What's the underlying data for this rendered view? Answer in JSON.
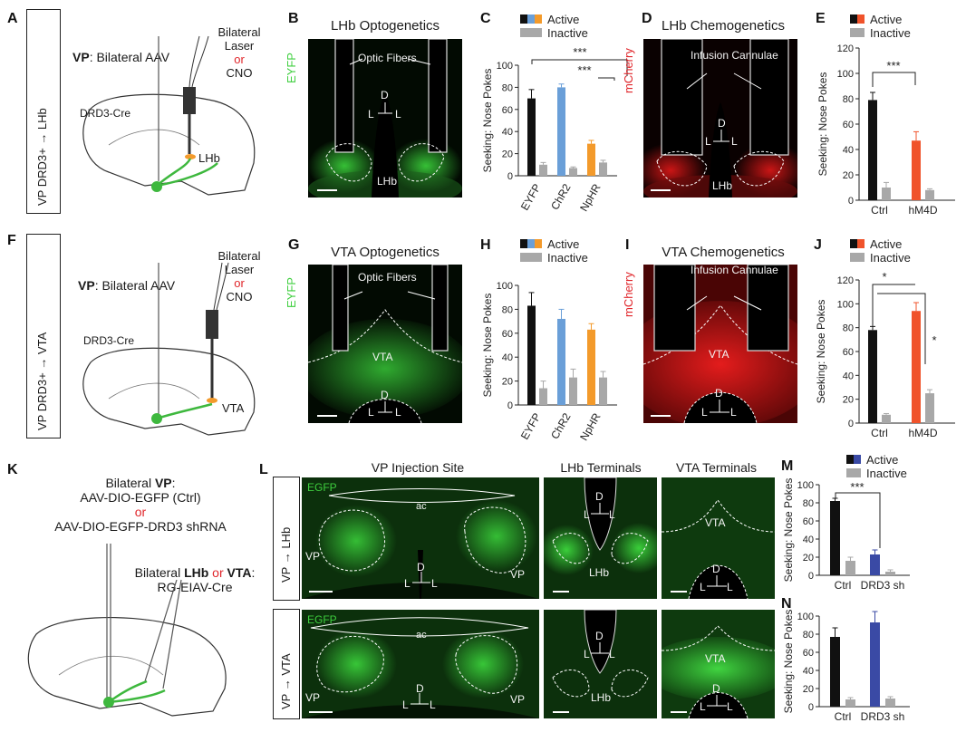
{
  "panels": {
    "A": {
      "label": "A",
      "bilateral": "Bilateral",
      "laser": "Laser",
      "or": "or",
      "cno": "CNO",
      "vp_bold": "VP",
      "vp_rest": ": Bilateral AAV",
      "cre": "DRD3-Cre",
      "target": "LHb",
      "side": "VP DRD3+ → LHb"
    },
    "B": {
      "label": "B",
      "title": "LHb Optogenetics",
      "stain": "EYFP",
      "fibers": "Optic Fibers",
      "region": "LHb",
      "d": "D",
      "l": "L"
    },
    "C": {
      "label": "C",
      "legend_active": "Active",
      "legend_inactive": "Inactive",
      "sig1": "***",
      "sig2": "***"
    },
    "D": {
      "label": "D",
      "title": "LHb Chemogenetics",
      "stain": "mCherry",
      "cannulae": "Infusion Cannulae",
      "region": "LHb",
      "d": "D",
      "l": "L"
    },
    "E": {
      "label": "E",
      "legend_active": "Active",
      "legend_inactive": "Inactive",
      "sig1": "***"
    },
    "F": {
      "label": "F",
      "bilateral": "Bilateral",
      "laser": "Laser",
      "or": "or",
      "cno": "CNO",
      "vp_bold": "VP",
      "vp_rest": ": Bilateral AAV",
      "cre": "DRD3-Cre",
      "target": "VTA",
      "side": "VP DRD3+ → VTA"
    },
    "G": {
      "label": "G",
      "title": "VTA Optogenetics",
      "stain": "EYFP",
      "fibers": "Optic Fibers",
      "region": "VTA",
      "d": "D",
      "l": "L"
    },
    "H": {
      "label": "H",
      "legend_active": "Active",
      "legend_inactive": "Inactive"
    },
    "I": {
      "label": "I",
      "title": "VTA Chemogenetics",
      "stain": "mCherry",
      "cannulae": "Infusion Cannulae",
      "region": "VTA",
      "d": "D",
      "l": "L"
    },
    "J": {
      "label": "J",
      "legend_active": "Active",
      "legend_inactive": "Inactive",
      "sig1": "*",
      "sig2": "*"
    },
    "K": {
      "label": "K",
      "line1_pre": "Bilateral ",
      "line1_bold": "VP",
      "line1_post": ":",
      "line2": "AAV-DIO-EGFP (Ctrl)",
      "line3": "or",
      "line4": "AAV-DIO-EGFP-DRD3 shRNA",
      "line5_pre": "Bilateral ",
      "line5_b1": "LHb",
      "line5_or": " or ",
      "line5_b2": "VTA",
      "line5_post": ":",
      "line6": "RG-EIAV-Cre"
    },
    "L": {
      "label": "L",
      "col1": "VP Injection Site",
      "col2": "LHb Terminals",
      "col3": "VTA Terminals",
      "row1": "VP → LHb",
      "row2": "VP → VTA",
      "stain": "EGFP",
      "ac": "ac",
      "vp": "VP",
      "lhb": "LHb",
      "vta": "VTA",
      "d": "D",
      "l": "L"
    },
    "M": {
      "label": "M",
      "legend_active": "Active",
      "legend_inactive": "Inactive",
      "sig1": "***"
    },
    "N": {
      "label": "N"
    }
  },
  "colors": {
    "black": "#111111",
    "blue": "#6a9fd8",
    "orange": "#f39a2b",
    "red_orange": "#f0532b",
    "gray": "#a8a8a8",
    "navy": "#3a4aa5"
  },
  "chart_data": [
    {
      "id": "C",
      "type": "bar",
      "ylabel": "Seeking: Nose Pokes",
      "ylim": [
        0,
        100
      ],
      "yticks": [
        0,
        20,
        40,
        60,
        80,
        100
      ],
      "categories": [
        "EYFP",
        "ChR2",
        "NpHR"
      ],
      "series": [
        {
          "name": "Active",
          "values": [
            70,
            80,
            29
          ],
          "errors": [
            8,
            3,
            3
          ]
        },
        {
          "name": "Inactive",
          "values": [
            10,
            7,
            12
          ],
          "errors": [
            2,
            1,
            2
          ]
        }
      ]
    },
    {
      "id": "E",
      "type": "bar",
      "ylabel": "Seeking: Nose Pokes",
      "ylim": [
        0,
        120
      ],
      "yticks": [
        0,
        20,
        40,
        60,
        80,
        100,
        120
      ],
      "categories": [
        "Ctrl",
        "hM4D"
      ],
      "series": [
        {
          "name": "Active",
          "values": [
            79,
            47
          ],
          "errors": [
            6,
            7
          ]
        },
        {
          "name": "Inactive",
          "values": [
            10,
            8
          ],
          "errors": [
            4,
            1
          ]
        }
      ]
    },
    {
      "id": "H",
      "type": "bar",
      "ylabel": "Seeking: Nose Pokes",
      "ylim": [
        0,
        100
      ],
      "yticks": [
        0,
        20,
        40,
        60,
        80,
        100
      ],
      "categories": [
        "EYFP",
        "ChR2",
        "NpHR"
      ],
      "series": [
        {
          "name": "Active",
          "values": [
            83,
            72,
            63
          ],
          "errors": [
            11,
            8,
            5
          ]
        },
        {
          "name": "Inactive",
          "values": [
            14,
            23,
            23
          ],
          "errors": [
            6,
            7,
            5
          ]
        }
      ]
    },
    {
      "id": "J",
      "type": "bar",
      "ylabel": "Seeking: Nose Pokes",
      "ylim": [
        0,
        120
      ],
      "yticks": [
        0,
        20,
        40,
        60,
        80,
        100,
        120
      ],
      "categories": [
        "Ctrl",
        "hM4D"
      ],
      "series": [
        {
          "name": "Active",
          "values": [
            78,
            94
          ],
          "errors": [
            3,
            7
          ]
        },
        {
          "name": "Inactive",
          "values": [
            7,
            25
          ],
          "errors": [
            1,
            3
          ]
        }
      ]
    },
    {
      "id": "M",
      "type": "bar",
      "ylabel": "Seeking: Nose Pokes",
      "ylim": [
        0,
        100
      ],
      "yticks": [
        0,
        20,
        40,
        60,
        80,
        100
      ],
      "categories": [
        "Ctrl",
        "DRD3 sh"
      ],
      "series": [
        {
          "name": "Active",
          "values": [
            82,
            23
          ],
          "errors": [
            3,
            5
          ]
        },
        {
          "name": "Inactive",
          "values": [
            16,
            4
          ],
          "errors": [
            4,
            2
          ]
        }
      ]
    },
    {
      "id": "N",
      "type": "bar",
      "ylabel": "Seeking: Nose Pokes",
      "ylim": [
        0,
        100
      ],
      "yticks": [
        0,
        20,
        40,
        60,
        80,
        100
      ],
      "categories": [
        "Ctrl",
        "DRD3 sh"
      ],
      "series": [
        {
          "name": "Active",
          "values": [
            77,
            93
          ],
          "errors": [
            10,
            12
          ]
        },
        {
          "name": "Inactive",
          "values": [
            8,
            9
          ],
          "errors": [
            2,
            2
          ]
        }
      ]
    }
  ]
}
